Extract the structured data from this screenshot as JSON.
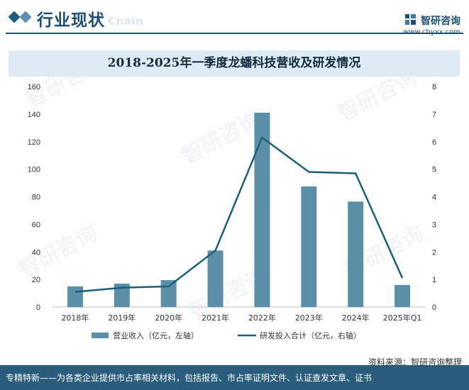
{
  "header": {
    "section_title": "行业现状",
    "ghost_title": "Chain",
    "brand_name": "智研咨询",
    "brand_url": "www.chyxx.com"
  },
  "colors": {
    "bar": "#5b8fa8",
    "line": "#1a5f7a",
    "primary": "#1d4f72"
  },
  "chart_data": {
    "type": "bar+line",
    "title": "2018-2025年一季度龙蟠科技营收及研发情况",
    "categories": [
      "2018年",
      "2019年",
      "2020年",
      "2021年",
      "2022年",
      "2023年",
      "2024年",
      "2025年Q1"
    ],
    "series": [
      {
        "name": "营业收入（亿元，左轴）",
        "type": "bar",
        "axis": "left",
        "values": [
          15.0,
          17.0,
          19.5,
          41.0,
          141.0,
          87.5,
          76.5,
          16.0
        ]
      },
      {
        "name": "研发投入合计（亿元，右轴）",
        "type": "line",
        "axis": "right",
        "values": [
          0.55,
          0.7,
          0.75,
          2.05,
          6.15,
          4.9,
          4.85,
          1.05
        ]
      }
    ],
    "left_axis": {
      "min": 0,
      "max": 160,
      "step": 20,
      "ticks": [
        "0",
        "20",
        "40",
        "60",
        "80",
        "100",
        "120",
        "140",
        "160"
      ]
    },
    "right_axis": {
      "min": 0,
      "max": 8,
      "step": 1,
      "ticks": [
        "0",
        "1",
        "2",
        "3",
        "4",
        "5",
        "6",
        "7",
        "8"
      ]
    },
    "legend_position": "bottom-center"
  },
  "source": "资料来源：智研咨询整理",
  "footer": "专精特新——为各类企业提供市占率相关材料，包括报告、市占率证明文件、认证查发文章、证书"
}
